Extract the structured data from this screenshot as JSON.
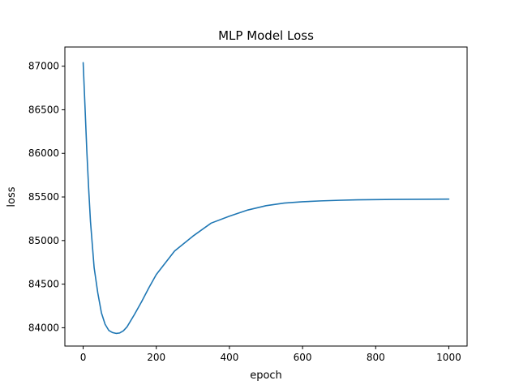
{
  "chart_data": {
    "type": "line",
    "title": "MLP Model Loss",
    "xlabel": "epoch",
    "ylabel": "loss",
    "xlim": [
      -50,
      1050
    ],
    "ylim": [
      83790,
      87220
    ],
    "x_ticks": [
      0,
      200,
      400,
      600,
      800,
      1000
    ],
    "y_ticks": [
      84000,
      84500,
      85000,
      85500,
      86000,
      86500,
      87000
    ],
    "grid": false,
    "legend": "none",
    "series": [
      {
        "color": "#1f77b4",
        "x": [
          0,
          5,
          10,
          15,
          20,
          30,
          40,
          50,
          60,
          70,
          80,
          90,
          100,
          110,
          120,
          140,
          160,
          180,
          200,
          250,
          300,
          350,
          400,
          450,
          500,
          550,
          600,
          650,
          700,
          750,
          800,
          850,
          900,
          950,
          1000
        ],
        "y": [
          87040,
          86540,
          86030,
          85600,
          85220,
          84690,
          84400,
          84170,
          84040,
          83970,
          83945,
          83935,
          83940,
          83965,
          84010,
          84150,
          84300,
          84460,
          84610,
          84880,
          85050,
          85200,
          85280,
          85350,
          85400,
          85430,
          85445,
          85455,
          85462,
          85467,
          85470,
          85472,
          85473,
          85474,
          85475
        ]
      }
    ]
  }
}
